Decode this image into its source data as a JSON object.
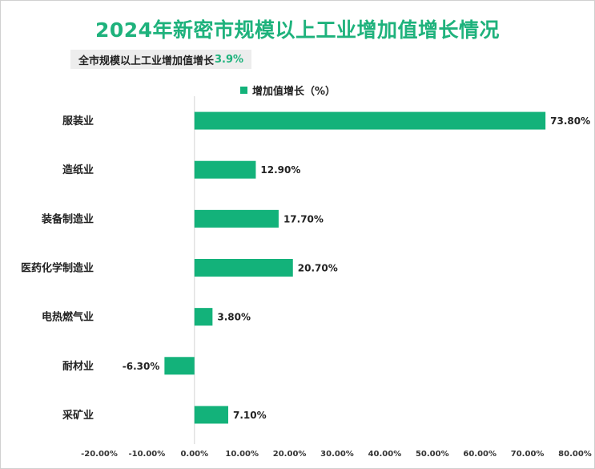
{
  "chart_data": {
    "type": "bar",
    "orientation": "horizontal",
    "title": "2024年新密市规模以上工业增加值增长情况",
    "subtitle": {
      "label": "全市规模以上工业增加值增长",
      "value": "3.9%"
    },
    "legend": [
      "增加值增长（%）"
    ],
    "categories": [
      "服装业",
      "造纸业",
      "装备制造业",
      "医药化学制造业",
      "电热燃气业",
      "耐材业",
      "采矿业"
    ],
    "values": [
      73.8,
      12.9,
      17.7,
      20.7,
      3.8,
      -6.3,
      7.1
    ],
    "value_labels": [
      "73.80%",
      "12.90%",
      "17.70%",
      "20.70%",
      "3.80%",
      "-6.30%",
      "7.10%"
    ],
    "xlim": [
      -20,
      80
    ],
    "xticks": [
      -20,
      -10,
      0,
      10,
      20,
      30,
      40,
      50,
      60,
      70,
      80
    ],
    "xtick_labels": [
      "-20.00%",
      "-10.00%",
      "0.00%",
      "10.00%",
      "20.00%",
      "30.00%",
      "40.00%",
      "50.00%",
      "60.00%",
      "70.00%",
      "80.00%"
    ],
    "bar_color": "#13b27a",
    "grid": false
  }
}
